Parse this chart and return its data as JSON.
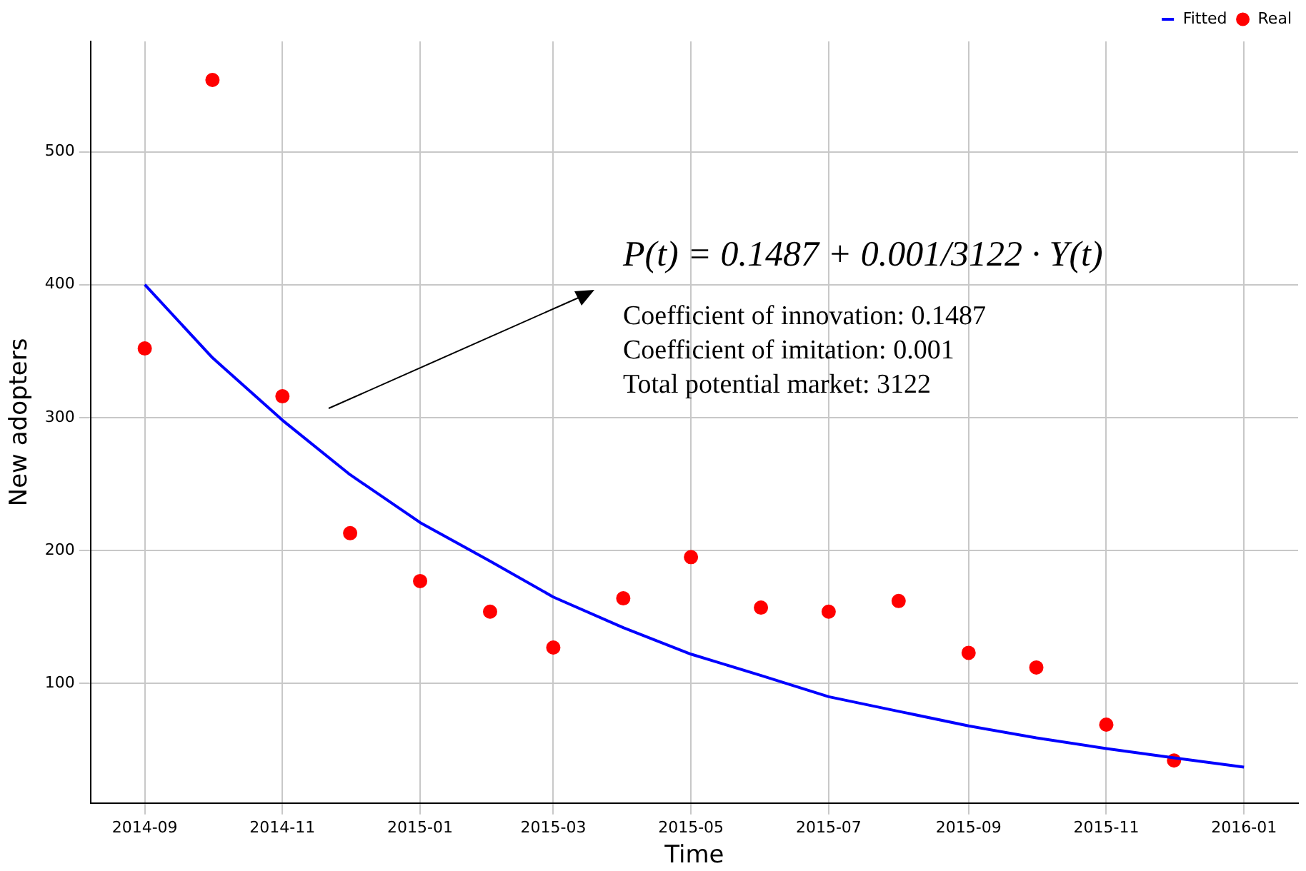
{
  "chart_data": {
    "type": "line",
    "xlabel": "Time",
    "ylabel": "New adopters",
    "xlim": [
      "2014-08-08",
      "2016-01-25"
    ],
    "ylim": [
      10,
      583
    ],
    "xticks": [
      "2014-09",
      "2014-11",
      "2015-01",
      "2015-03",
      "2015-05",
      "2015-07",
      "2015-09",
      "2015-11",
      "2016-01"
    ],
    "yticks": [
      100,
      200,
      300,
      400,
      500
    ],
    "grid": true,
    "legend": "top right",
    "series": [
      {
        "name": "Fitted",
        "color": "#0000ff",
        "marker": "none",
        "line_style": "solid",
        "x": [
          "2014-09",
          "2014-10",
          "2014-11",
          "2014-12",
          "2015-01",
          "2015-02",
          "2015-03",
          "2015-04",
          "2015-05",
          "2015-06",
          "2015-07",
          "2015-08",
          "2015-09",
          "2015-10",
          "2015-11",
          "2015-12",
          "2016-01"
        ],
        "values": [
          400,
          345,
          298,
          257,
          221,
          192,
          165,
          142,
          122,
          106,
          90,
          79,
          68,
          59,
          51,
          44,
          37
        ]
      },
      {
        "name": "Real",
        "type": "scatter",
        "color": "#ff0000",
        "marker": "circle",
        "x": [
          "2014-09",
          "2014-10",
          "2014-11",
          "2014-12",
          "2015-01",
          "2015-02",
          "2015-03",
          "2015-04",
          "2015-05",
          "2015-06",
          "2015-07",
          "2015-08",
          "2015-09",
          "2015-10",
          "2015-11",
          "2015-12"
        ],
        "values": [
          352,
          554,
          316,
          213,
          177,
          154,
          127,
          164,
          195,
          157,
          154,
          162,
          123,
          112,
          69,
          42
        ]
      }
    ],
    "annotations": [
      "P(t) = 0.1487 + 0.001/3122 · Y(t)",
      "Coefficient of innovation: 0.1487",
      "Coefficient of imitation: 0.001",
      "Total potential market: 3122"
    ]
  }
}
